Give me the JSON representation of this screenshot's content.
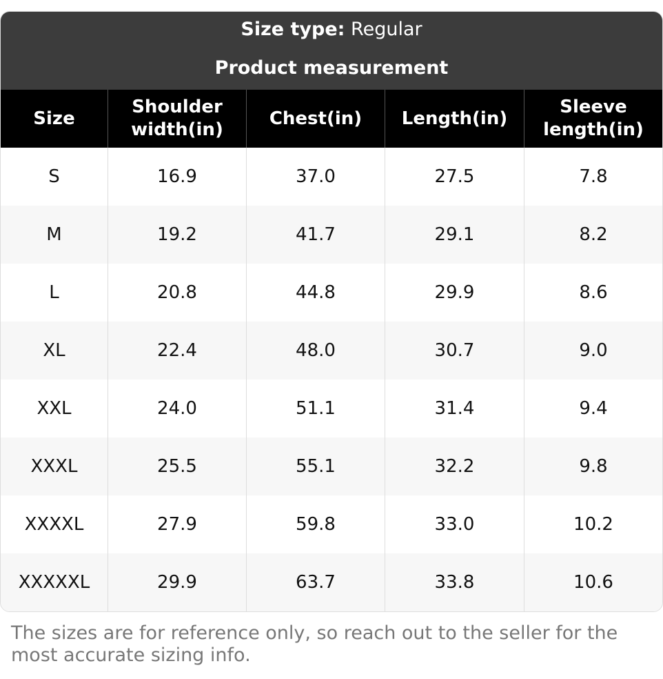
{
  "header": {
    "size_type_label": "Size type:",
    "size_type_value": "Regular",
    "subtitle": "Product measurement"
  },
  "table": {
    "columns": [
      "Size",
      "Shoulder width(in)",
      "Chest(in)",
      "Length(in)",
      "Sleeve length(in)"
    ],
    "rows": [
      [
        "S",
        "16.9",
        "37.0",
        "27.5",
        "7.8"
      ],
      [
        "M",
        "19.2",
        "41.7",
        "29.1",
        "8.2"
      ],
      [
        "L",
        "20.8",
        "44.8",
        "29.9",
        "8.6"
      ],
      [
        "XL",
        "22.4",
        "48.0",
        "30.7",
        "9.0"
      ],
      [
        "XXL",
        "24.0",
        "51.1",
        "31.4",
        "9.4"
      ],
      [
        "XXXL",
        "25.5",
        "55.1",
        "32.2",
        "9.8"
      ],
      [
        "XXXXL",
        "27.9",
        "59.8",
        "33.0",
        "10.2"
      ],
      [
        "XXXXXL",
        "29.9",
        "63.7",
        "33.8",
        "10.6"
      ]
    ]
  },
  "footnote": "The sizes are for reference only, so reach out to the seller for the most accurate sizing info."
}
